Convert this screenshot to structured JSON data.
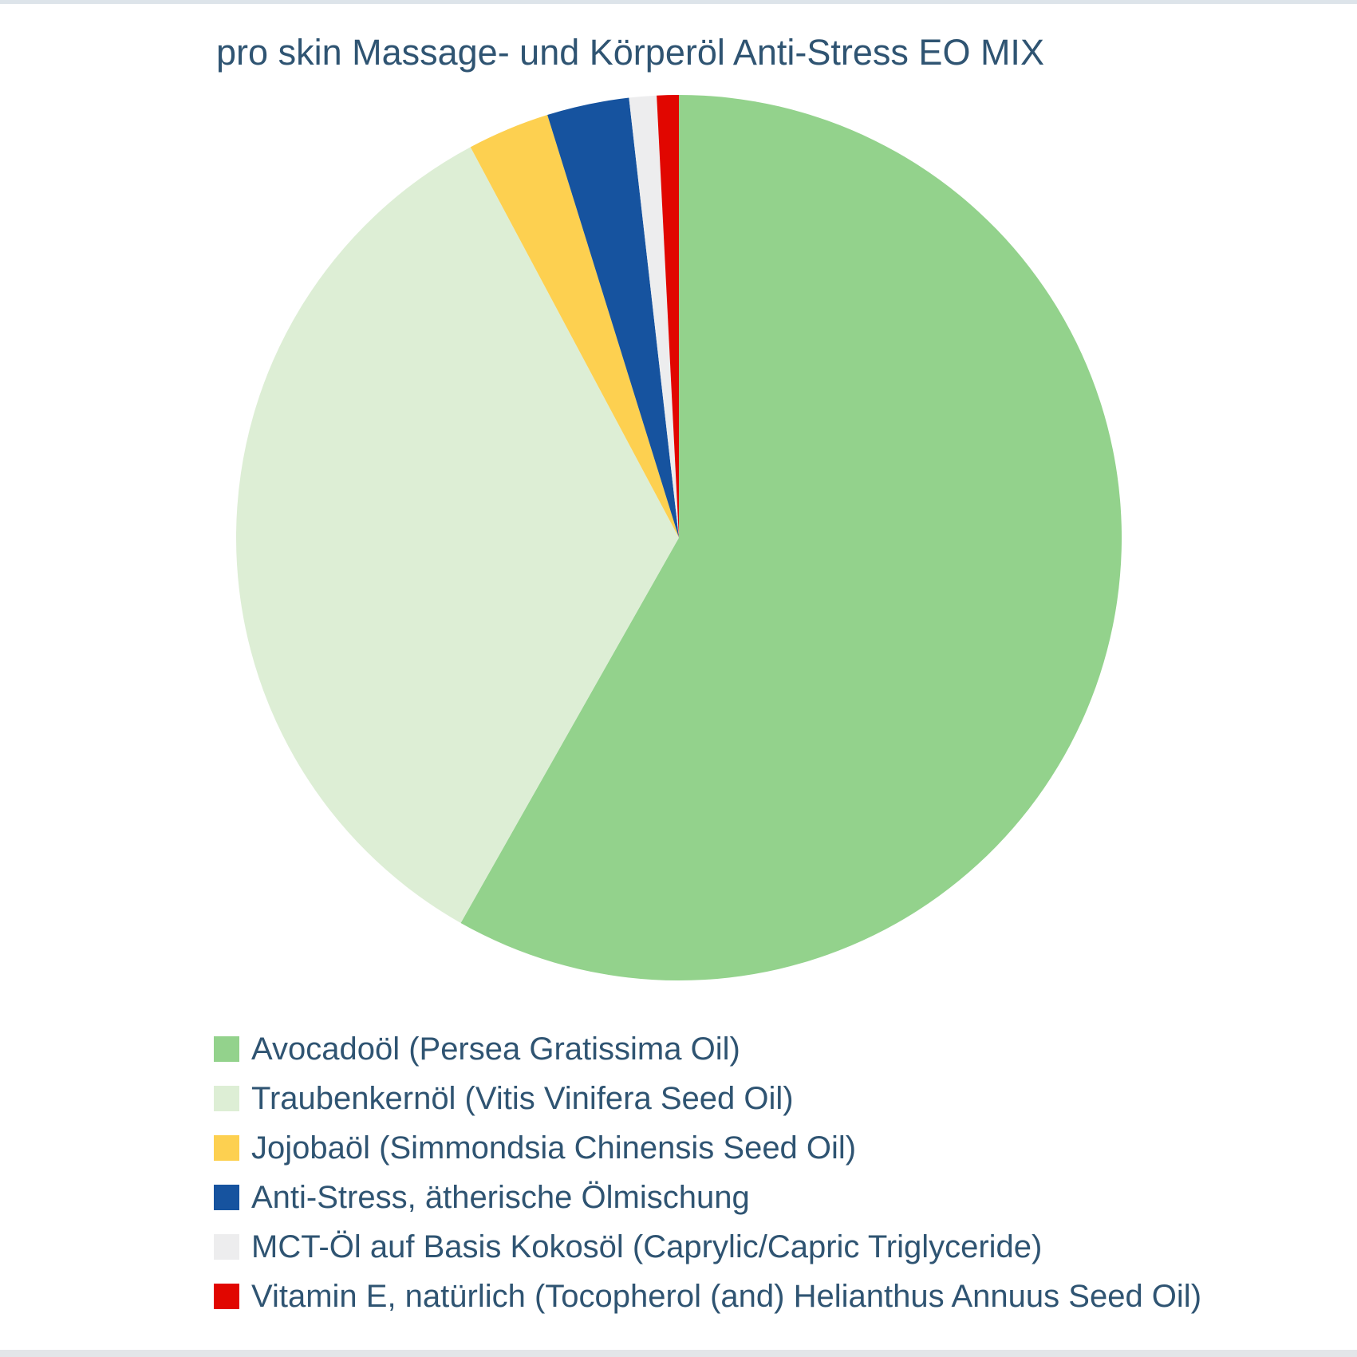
{
  "title": "pro skin Massage- und Körperöl Anti-Stress EO MIX",
  "colors": {
    "text": "#2f5472",
    "background": "#ffffff",
    "top_strip": "#dde4ea",
    "bottom_strip": "#e3e6e9"
  },
  "chart_data": {
    "type": "pie",
    "title": "pro skin Massage- und Körperöl Anti-Stress EO MIX",
    "values_unit": "percent",
    "start_angle_deg": 0,
    "direction": "clockwise",
    "grid": false,
    "legend_position": "bottom-left",
    "data_labels_shown": false,
    "slices": [
      {
        "label": "Avocadoöl (Persea Gratissima Oil)",
        "value": 58.2,
        "color": "#93d28c"
      },
      {
        "label": "Traubenkernöl (Vitis Vinifera Seed Oil)",
        "value": 34.0,
        "color": "#ddeed5"
      },
      {
        "label": "Jojobaöl (Simmondsia Chinensis Seed Oil)",
        "value": 3.0,
        "color": "#fdd050"
      },
      {
        "label": "Anti-Stress, ätherische Ölmischung",
        "value": 3.0,
        "color": "#16539f"
      },
      {
        "label": "MCT-Öl auf Basis Kokosöl (Caprylic/Capric Triglyceride)",
        "value": 1.0,
        "color": "#ededee"
      },
      {
        "label": "Vitamin E, natürlich (Tocopherol (and) Helianthus Annuus Seed Oil)",
        "value": 0.8,
        "color": "#e10600"
      }
    ]
  }
}
